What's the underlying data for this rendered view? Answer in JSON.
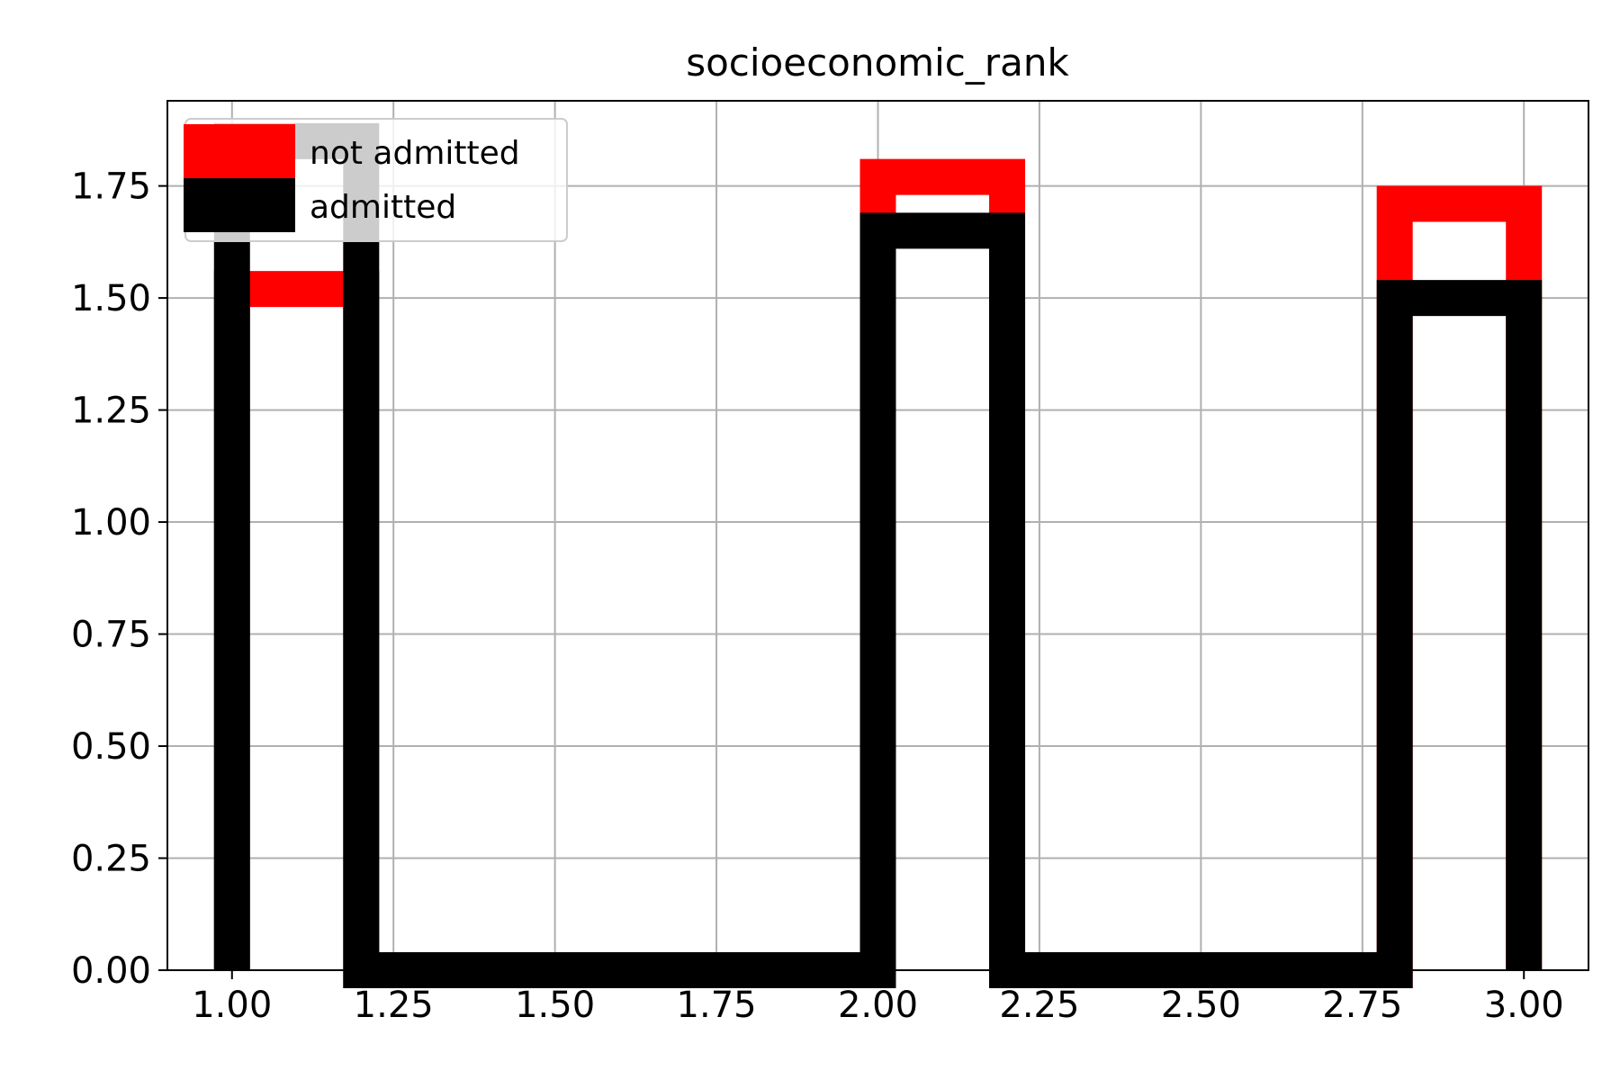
{
  "chart_data": {
    "type": "histogram-step",
    "title": "socioeconomic_rank",
    "xlabel": "",
    "ylabel": "",
    "xlim": [
      0.9,
      3.1
    ],
    "ylim": [
      0,
      1.94
    ],
    "grid": true,
    "legend_position": "top-left",
    "x_ticks": [
      1.0,
      1.25,
      1.5,
      1.75,
      2.0,
      2.25,
      2.5,
      2.75,
      3.0
    ],
    "x_tick_labels": [
      "1.00",
      "1.25",
      "1.50",
      "1.75",
      "2.00",
      "2.25",
      "2.50",
      "2.75",
      "3.00"
    ],
    "y_ticks": [
      0,
      0.25,
      0.5,
      0.75,
      1.0,
      1.25,
      1.5,
      1.75
    ],
    "y_tick_labels": [
      "0.00",
      "0.25",
      "0.50",
      "0.75",
      "1.00",
      "1.25",
      "1.50",
      "1.75"
    ],
    "series": [
      {
        "name": "not admitted",
        "color": "#ff0000",
        "bins": [
          {
            "x0": 1.0,
            "x1": 1.2,
            "y": 1.52
          },
          {
            "x0": 1.2,
            "x1": 2.0,
            "y": 0.0
          },
          {
            "x0": 2.0,
            "x1": 2.2,
            "y": 1.77
          },
          {
            "x0": 2.2,
            "x1": 2.8,
            "y": 0.0
          },
          {
            "x0": 2.8,
            "x1": 3.0,
            "y": 1.71
          }
        ]
      },
      {
        "name": "admitted",
        "color": "#000000",
        "bins": [
          {
            "x0": 1.0,
            "x1": 1.2,
            "y": 1.85
          },
          {
            "x0": 1.2,
            "x1": 2.0,
            "y": 0.0
          },
          {
            "x0": 2.0,
            "x1": 2.2,
            "y": 1.65
          },
          {
            "x0": 2.2,
            "x1": 2.8,
            "y": 0.0
          },
          {
            "x0": 2.8,
            "x1": 3.0,
            "y": 1.5
          }
        ]
      }
    ]
  }
}
